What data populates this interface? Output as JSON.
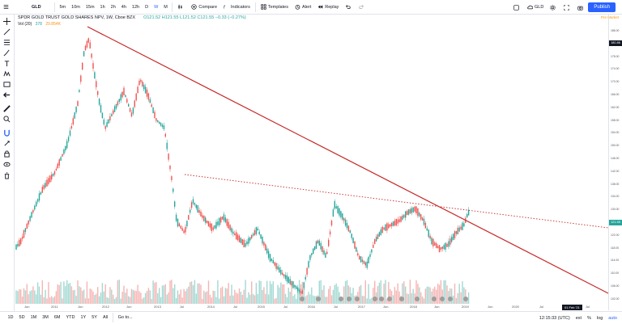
{
  "toolbar": {
    "symbol": "GLD",
    "intervals": [
      "5m",
      "10m",
      "15m",
      "1h",
      "2h",
      "4h",
      "12h",
      "D",
      "W",
      "M"
    ],
    "active_interval": "W",
    "compare_label": "Compare",
    "indicators_label": "Indicators",
    "templates_label": "Templates",
    "alert_label": "Alert",
    "replay_label": "Replay",
    "right_symbol": "GLD",
    "publish_label": "Publish"
  },
  "legend": {
    "title": "SPDR GOLD TRUST GOLD SHARES NPV, 1W, Cboe BZX",
    "ohlc": "O121.52  H121.55  L121.52  C121.55  −0.33 (−0.27%)",
    "vol_label": "Vol (20)",
    "vol_value1": "378",
    "vol_value2": "29.854K",
    "premarket": "Pre Market"
  },
  "yaxis": {
    "ticks": [
      "186.00",
      "182.00",
      "178.00",
      "174.00",
      "170.00",
      "166.00",
      "162.00",
      "158.00",
      "154.00",
      "150.00",
      "146.00",
      "142.00",
      "138.00",
      "134.00",
      "130.00",
      "126.00",
      "122.00",
      "118.00",
      "114.00",
      "110.00",
      "106.00",
      "102.00"
    ],
    "current_price": "121.55",
    "top_badge": "180.86"
  },
  "xaxis": {
    "ticks": [
      "Jun",
      "2011",
      "Jun",
      "2012",
      "Jun",
      "2013",
      "Jul",
      "2014",
      "Jul",
      "2015",
      "Jul",
      "2016",
      "Jul",
      "2017",
      "Jun",
      "2018",
      "Jun",
      "2019",
      "Jun",
      "2020",
      "Jul",
      "Jul"
    ],
    "date_badge": "01 Feb '21"
  },
  "bottombar": {
    "ranges": [
      "1D",
      "5D",
      "1M",
      "3M",
      "6M",
      "YTD",
      "1Y",
      "5Y",
      "All"
    ],
    "goto_label": "Go to...",
    "clock": "12:15:33 (UTC)",
    "ext": "ext",
    "pct": "%",
    "log": "log",
    "auto": "auto"
  },
  "colors": {
    "up": "#26a69a",
    "down": "#ef5350",
    "trendline": "#c62828",
    "accent": "#2962ff"
  }
}
